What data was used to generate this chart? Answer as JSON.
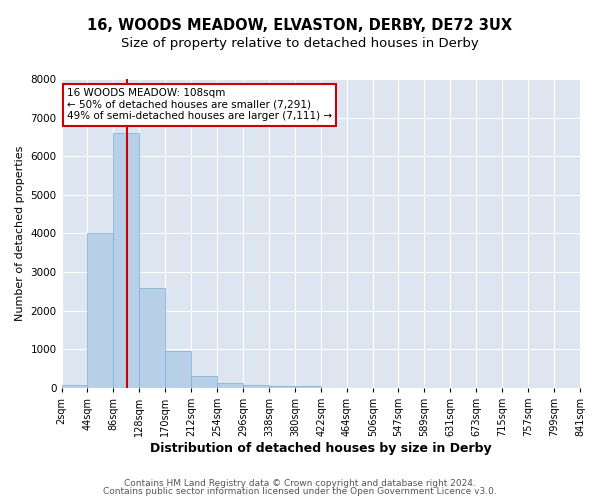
{
  "title1": "16, WOODS MEADOW, ELVASTON, DERBY, DE72 3UX",
  "title2": "Size of property relative to detached houses in Derby",
  "xlabel": "Distribution of detached houses by size in Derby",
  "ylabel": "Number of detached properties",
  "bin_edges": [
    2,
    44,
    86,
    128,
    170,
    212,
    254,
    296,
    338,
    380,
    422,
    464,
    506,
    547,
    589,
    631,
    673,
    715,
    757,
    799,
    841
  ],
  "bar_heights": [
    70,
    4000,
    6600,
    2600,
    950,
    300,
    130,
    70,
    60,
    40,
    0,
    0,
    0,
    0,
    0,
    0,
    0,
    0,
    0,
    0
  ],
  "bar_color": "#b8cfe8",
  "bar_edge_color": "#7aadd4",
  "bg_color": "#dde6f0",
  "grid_color": "#ffffff",
  "vline_x": 108,
  "vline_color": "#cc0000",
  "annotation_text": "16 WOODS MEADOW: 108sqm\n← 50% of detached houses are smaller (7,291)\n49% of semi-detached houses are larger (7,111) →",
  "annotation_box_color": "#ffffff",
  "annotation_box_edge": "#cc0000",
  "ylim": [
    0,
    8000
  ],
  "yticks": [
    0,
    1000,
    2000,
    3000,
    4000,
    5000,
    6000,
    7000,
    8000
  ],
  "footer1": "Contains HM Land Registry data © Crown copyright and database right 2024.",
  "footer2": "Contains public sector information licensed under the Open Government Licence v3.0.",
  "title1_fontsize": 10.5,
  "title2_fontsize": 9.5,
  "xlabel_fontsize": 9,
  "ylabel_fontsize": 8,
  "tick_fontsize": 7,
  "annotation_fontsize": 7.5,
  "footer_fontsize": 6.5
}
